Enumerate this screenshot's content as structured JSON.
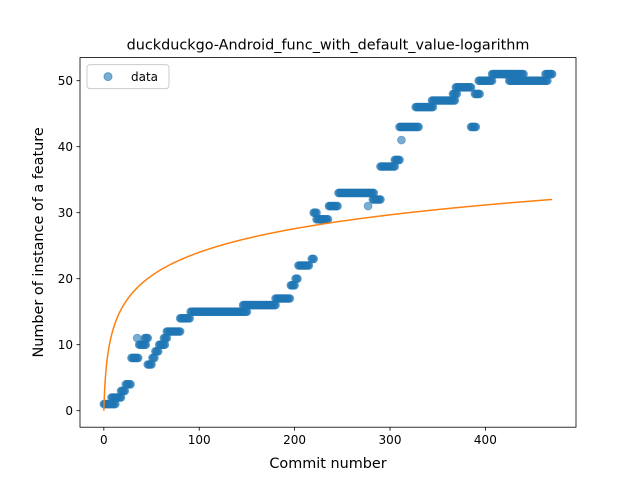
{
  "chart_data": {
    "type": "scatter",
    "title": "duckduckgo-Android_func_with_default_value-logarithm",
    "xlabel": "Commit number",
    "ylabel": "Number of instance of a feature",
    "xlim": [
      -25,
      495
    ],
    "ylim": [
      -2.5,
      53.5
    ],
    "xticks": [
      0,
      100,
      200,
      300,
      400
    ],
    "yticks": [
      0,
      10,
      20,
      30,
      40,
      50
    ],
    "grid": false,
    "legend_position": "top-left",
    "colors": {
      "data": "#1f77b4",
      "fit": "#ff7f0e"
    },
    "series": [
      {
        "name": "data",
        "kind": "scatter",
        "segments": [
          [
            0,
            3,
            1
          ],
          [
            4,
            12,
            1
          ],
          [
            8,
            18,
            2
          ],
          [
            18,
            22,
            3
          ],
          [
            23,
            28,
            4
          ],
          [
            29,
            36,
            8
          ],
          [
            35,
            35,
            11
          ],
          [
            37,
            44,
            10
          ],
          [
            43,
            46,
            11
          ],
          [
            46,
            50,
            7
          ],
          [
            51,
            53,
            8
          ],
          [
            54,
            57,
            9
          ],
          [
            58,
            64,
            10
          ],
          [
            63,
            66,
            11
          ],
          [
            66,
            80,
            12
          ],
          [
            80,
            90,
            14
          ],
          [
            91,
            150,
            15
          ],
          [
            146,
            180,
            16
          ],
          [
            180,
            195,
            17
          ],
          [
            196,
            200,
            19
          ],
          [
            201,
            203,
            20
          ],
          [
            204,
            215,
            22
          ],
          [
            218,
            220,
            23
          ],
          [
            220,
            223,
            30
          ],
          [
            223,
            235,
            29
          ],
          [
            236,
            245,
            31
          ],
          [
            246,
            283,
            33
          ],
          [
            277,
            277,
            31
          ],
          [
            282,
            290,
            32
          ],
          [
            290,
            305,
            37
          ],
          [
            305,
            310,
            38
          ],
          [
            310,
            330,
            43
          ],
          [
            312,
            312,
            41
          ],
          [
            327,
            345,
            46
          ],
          [
            344,
            368,
            47
          ],
          [
            366,
            370,
            48
          ],
          [
            369,
            385,
            49
          ],
          [
            385,
            390,
            43
          ],
          [
            389,
            394,
            48
          ],
          [
            393,
            400,
            50
          ],
          [
            400,
            407,
            50
          ],
          [
            407,
            420,
            51
          ],
          [
            420,
            440,
            51
          ],
          [
            425,
            465,
            50
          ],
          [
            463,
            470,
            51
          ]
        ]
      },
      {
        "name": "",
        "kind": "line",
        "model": "logarithmic",
        "x_range": [
          0,
          470
        ],
        "a": 5.2,
        "b": 4.3
      }
    ]
  }
}
